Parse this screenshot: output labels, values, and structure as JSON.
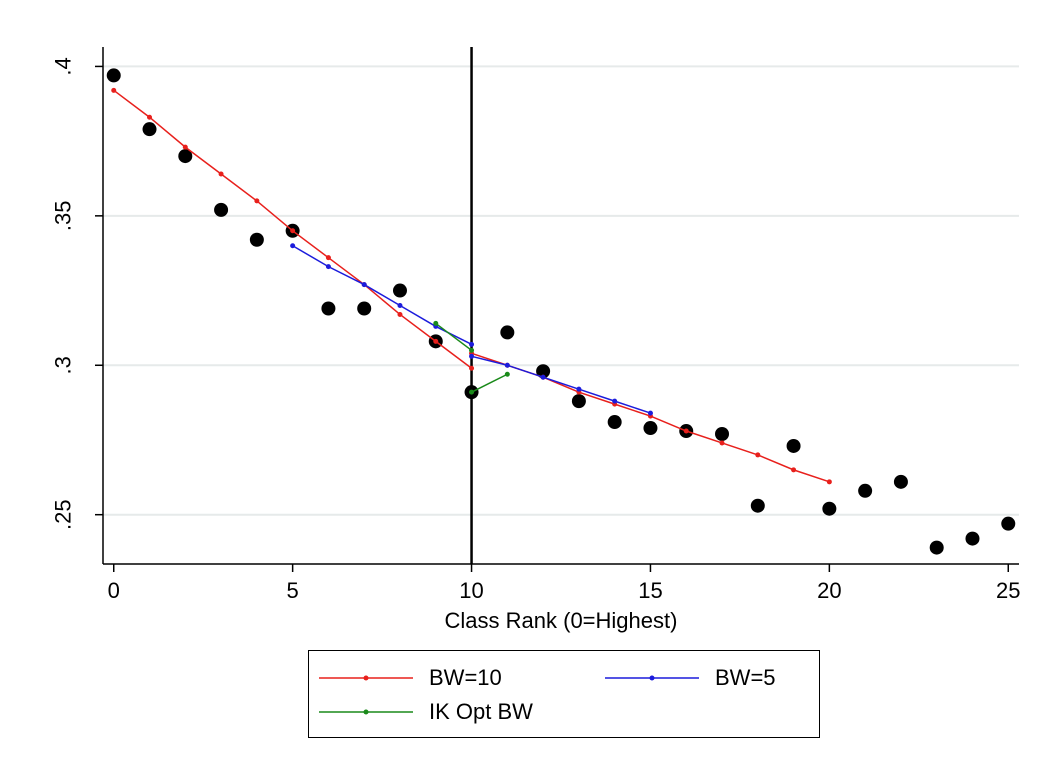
{
  "chart_data": {
    "type": "scatter",
    "xlabel": "Class Rank (0=Highest)",
    "ylabel": "",
    "xlim": [
      -0.3,
      25.3
    ],
    "ylim": [
      0.2335,
      0.4065
    ],
    "xticks": [
      0,
      5,
      10,
      15,
      20,
      25
    ],
    "xtick_labels": [
      "0",
      "5",
      "10",
      "15",
      "20",
      "25"
    ],
    "yticks": [
      0.25,
      0.3,
      0.35,
      0.4
    ],
    "ytick_labels": [
      ".25",
      ".3",
      ".35",
      ".4"
    ],
    "grid": "horizontal",
    "cutoff_x": 10,
    "scatter": {
      "x": [
        0,
        1,
        2,
        3,
        4,
        5,
        6,
        7,
        8,
        9,
        10,
        11,
        12,
        13,
        14,
        15,
        16,
        17,
        18,
        19,
        20,
        21,
        22,
        23,
        24,
        25
      ],
      "y": [
        0.397,
        0.379,
        0.37,
        0.352,
        0.342,
        0.345,
        0.319,
        0.319,
        0.325,
        0.308,
        0.291,
        0.311,
        0.298,
        0.288,
        0.281,
        0.279,
        0.278,
        0.277,
        0.253,
        0.273,
        0.252,
        0.258,
        0.261,
        0.239,
        0.242,
        0.247
      ],
      "color": "#000000"
    },
    "series": [
      {
        "name": "BW=10",
        "color": "#e8201c",
        "segments": [
          {
            "x": [
              0,
              1,
              2,
              3,
              4,
              5,
              6,
              7,
              8,
              9,
              10
            ],
            "y": [
              0.392,
              0.383,
              0.373,
              0.364,
              0.355,
              0.345,
              0.336,
              0.327,
              0.317,
              0.308,
              0.299
            ]
          },
          {
            "x": [
              10,
              11,
              12,
              13,
              14,
              15,
              16,
              17,
              18,
              19,
              20
            ],
            "y": [
              0.304,
              0.3,
              0.296,
              0.291,
              0.287,
              0.283,
              0.278,
              0.274,
              0.27,
              0.265,
              0.261
            ]
          }
        ]
      },
      {
        "name": "BW=5",
        "color": "#1c1cdc",
        "segments": [
          {
            "x": [
              5,
              6,
              7,
              8,
              9,
              10
            ],
            "y": [
              0.34,
              0.333,
              0.327,
              0.32,
              0.313,
              0.307
            ]
          },
          {
            "x": [
              10,
              11,
              12,
              13,
              14,
              15
            ],
            "y": [
              0.303,
              0.3,
              0.296,
              0.292,
              0.288,
              0.284
            ]
          }
        ]
      },
      {
        "name": "IK Opt BW",
        "color": "#1a8a1a",
        "segments": [
          {
            "x": [
              9,
              10
            ],
            "y": [
              0.314,
              0.305
            ]
          },
          {
            "x": [
              10,
              11
            ],
            "y": [
              0.291,
              0.297
            ]
          }
        ]
      }
    ],
    "legend": {
      "placement": "bottom",
      "entries": [
        "BW=10",
        "BW=5",
        "IK Opt BW"
      ]
    }
  }
}
